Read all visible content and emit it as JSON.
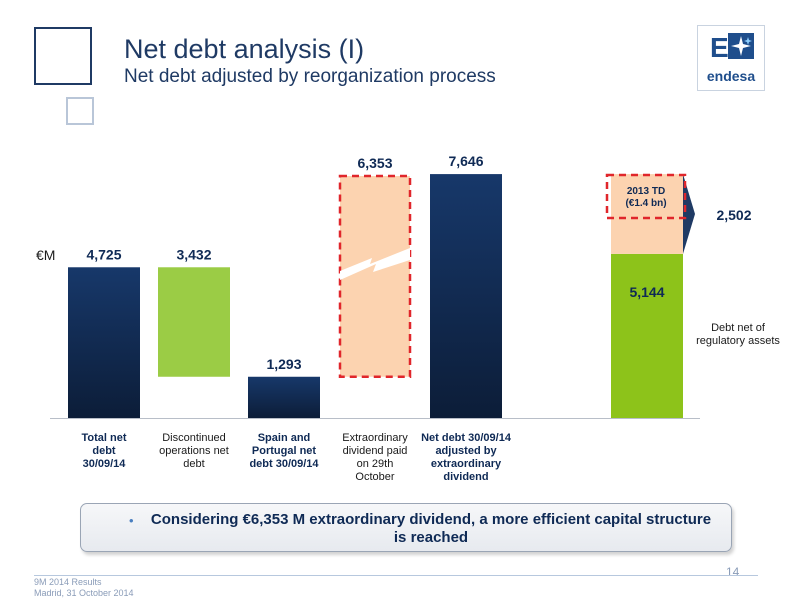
{
  "header": {
    "title": "Net debt analysis (I)",
    "subtitle": "Net debt adjusted by reorganization process"
  },
  "logo": {
    "mark": "E",
    "text": "endesa"
  },
  "chart_data": {
    "type": "bar",
    "unit_label": "€M",
    "categories": [
      [
        "Total net",
        "debt",
        "30/09/14"
      ],
      [
        "Discontinued",
        "operations net",
        "debt"
      ],
      [
        "Spain and",
        "Portugal net",
        "debt 30/09/14"
      ],
      [
        "Extraordinary",
        "dividend paid",
        "on 29th",
        "October"
      ],
      [
        "Net debt 30/09/14",
        "adjusted by",
        "extraordinary",
        "dividend"
      ],
      []
    ],
    "category_bold": [
      true,
      false,
      true,
      false,
      true,
      false
    ],
    "bars": [
      {
        "label": "4,725",
        "base": 0,
        "value": 4725,
        "style": "navy"
      },
      {
        "label": "3,432",
        "base": 1293,
        "value": 3432,
        "style": "green-light"
      },
      {
        "label": "1,293",
        "base": 0,
        "value": 1293,
        "style": "navy"
      },
      {
        "label": "6,353",
        "base": 1293,
        "value": 6353,
        "style": "peach-dashed",
        "broken_axis": true
      },
      {
        "label": "7,646",
        "base": 0,
        "value": 7646,
        "style": "navy"
      },
      {
        "label": "5,144",
        "base": 0,
        "value": 5144,
        "style": "green"
      }
    ],
    "stack_top": {
      "label": "2,502",
      "value": 2502,
      "style": "peach"
    },
    "stack_highlight": {
      "lines": [
        "2013 TD",
        "(€1.4 bn)"
      ]
    },
    "side_note": "Debt net of regulatory assets",
    "ylim": [
      0,
      7700
    ],
    "colors": {
      "navy_top": "#17386a",
      "navy_bottom": "#0c1d38",
      "green_light": "#9bcc45",
      "green": "#8dc31a",
      "peach": "#fcd3b0",
      "dash": "#e0262b",
      "navy_arrow": "#1f3a64"
    }
  },
  "callout": {
    "bullet": "•",
    "text": "Considering €6,353 M extraordinary dividend, a more efficient capital structure is reached"
  },
  "footer": {
    "page": "14",
    "line1": "9M 2014 Results",
    "line2": "Madrid, 31 October 2014"
  }
}
